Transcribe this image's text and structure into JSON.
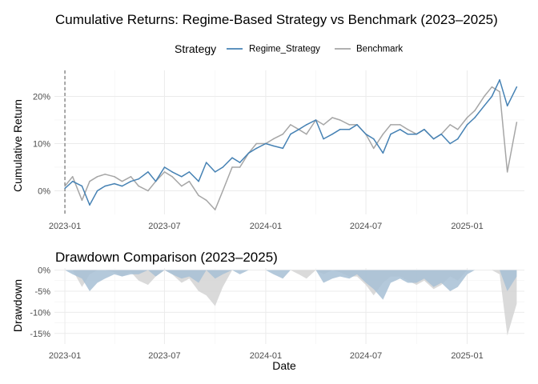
{
  "chart_data": [
    {
      "type": "line",
      "title": "Cumulative Returns: Regime-Based Strategy vs Benchmark (2023–2025)",
      "xlabel": "",
      "ylabel": "Cumulative Return",
      "x_ticks": [
        "2023-01",
        "2023-07",
        "2024-01",
        "2024-07",
        "2025-01"
      ],
      "y_ticks": [
        "0%",
        "10%",
        "20%"
      ],
      "ylim": [
        -0.05,
        0.255
      ],
      "xlim": [
        "2022-12-13",
        "2025-04-15"
      ],
      "grid": true,
      "reference_line": {
        "x": "2023-01-01",
        "style": "dashed"
      },
      "legend": {
        "title": "Strategy",
        "placement": "top",
        "entries": [
          "Regime_Strategy",
          "Benchmark"
        ]
      },
      "colors": {
        "Regime_Strategy": "#4682b4",
        "Benchmark": "#a6a6a6"
      },
      "x": [
        "2023-01-01",
        "2023-01-15",
        "2023-02-01",
        "2023-02-15",
        "2023-03-01",
        "2023-03-15",
        "2023-04-01",
        "2023-04-15",
        "2023-05-01",
        "2023-05-15",
        "2023-06-01",
        "2023-06-15",
        "2023-07-01",
        "2023-07-15",
        "2023-08-01",
        "2023-08-15",
        "2023-09-01",
        "2023-09-15",
        "2023-10-01",
        "2023-10-15",
        "2023-11-01",
        "2023-11-15",
        "2023-12-01",
        "2023-12-15",
        "2024-01-01",
        "2024-01-15",
        "2024-02-01",
        "2024-02-15",
        "2024-03-01",
        "2024-03-15",
        "2024-04-01",
        "2024-04-15",
        "2024-05-01",
        "2024-05-15",
        "2024-06-01",
        "2024-06-15",
        "2024-07-01",
        "2024-07-15",
        "2024-08-01",
        "2024-08-15",
        "2024-09-01",
        "2024-09-15",
        "2024-10-01",
        "2024-10-15",
        "2024-11-01",
        "2024-11-15",
        "2024-12-01",
        "2024-12-15",
        "2025-01-01",
        "2025-01-15",
        "2025-02-01",
        "2025-02-15",
        "2025-03-01",
        "2025-03-15",
        "2025-04-01"
      ],
      "series": [
        {
          "name": "Regime_Strategy",
          "values": [
            0.005,
            0.02,
            0.01,
            -0.03,
            0.0,
            0.01,
            0.015,
            0.01,
            0.02,
            0.025,
            0.04,
            0.02,
            0.05,
            0.04,
            0.03,
            0.04,
            0.02,
            0.06,
            0.04,
            0.05,
            0.07,
            0.06,
            0.08,
            0.09,
            0.1,
            0.095,
            0.09,
            0.12,
            0.13,
            0.14,
            0.15,
            0.11,
            0.12,
            0.13,
            0.13,
            0.14,
            0.12,
            0.11,
            0.08,
            0.12,
            0.13,
            0.12,
            0.12,
            0.13,
            0.11,
            0.12,
            0.1,
            0.11,
            0.14,
            0.155,
            0.18,
            0.2,
            0.235,
            0.18,
            0.22
          ]
        },
        {
          "name": "Benchmark",
          "values": [
            0.01,
            0.03,
            -0.02,
            0.02,
            0.03,
            0.035,
            0.03,
            0.02,
            0.03,
            0.01,
            0.0,
            0.02,
            0.04,
            0.03,
            0.01,
            0.02,
            -0.01,
            -0.02,
            -0.04,
            0.0,
            0.05,
            0.05,
            0.08,
            0.1,
            0.1,
            0.11,
            0.12,
            0.14,
            0.13,
            0.12,
            0.15,
            0.14,
            0.155,
            0.15,
            0.14,
            0.14,
            0.12,
            0.09,
            0.12,
            0.14,
            0.14,
            0.13,
            0.12,
            0.13,
            0.11,
            0.12,
            0.14,
            0.13,
            0.155,
            0.17,
            0.2,
            0.22,
            0.21,
            0.04,
            0.145
          ]
        }
      ]
    },
    {
      "type": "area",
      "title": "Drawdown Comparison (2023–2025)",
      "xlabel": "Date",
      "ylabel": "Drawdown",
      "x_ticks": [
        "2023-01",
        "2023-07",
        "2024-01",
        "2024-07",
        "2025-01"
      ],
      "y_ticks": [
        "0%",
        "-5%",
        "-10%",
        "-15%"
      ],
      "ylim": [
        -0.175,
        0.005
      ],
      "xlim": [
        "2022-12-13",
        "2025-04-15"
      ],
      "grid": true,
      "legend": {
        "placement": "none"
      },
      "colors": {
        "Regime_Strategy": "#a7bfd5",
        "Benchmark": "#d4d4d4"
      },
      "x": [
        "2023-01-01",
        "2023-01-15",
        "2023-02-01",
        "2023-02-15",
        "2023-03-01",
        "2023-03-15",
        "2023-04-01",
        "2023-04-15",
        "2023-05-01",
        "2023-05-15",
        "2023-06-01",
        "2023-06-15",
        "2023-07-01",
        "2023-07-15",
        "2023-08-01",
        "2023-08-15",
        "2023-09-01",
        "2023-09-15",
        "2023-10-01",
        "2023-10-15",
        "2023-11-01",
        "2023-11-15",
        "2023-12-01",
        "2023-12-15",
        "2024-01-01",
        "2024-01-15",
        "2024-02-01",
        "2024-02-15",
        "2024-03-01",
        "2024-03-15",
        "2024-04-01",
        "2024-04-15",
        "2024-05-01",
        "2024-05-15",
        "2024-06-01",
        "2024-06-15",
        "2024-07-01",
        "2024-07-15",
        "2024-08-01",
        "2024-08-15",
        "2024-09-01",
        "2024-09-15",
        "2024-10-01",
        "2024-10-15",
        "2024-11-01",
        "2024-11-15",
        "2024-12-01",
        "2024-12-15",
        "2025-01-01",
        "2025-01-15",
        "2025-02-01",
        "2025-02-15",
        "2025-03-01",
        "2025-03-15",
        "2025-04-01"
      ],
      "series": [
        {
          "name": "Regime_Strategy",
          "values": [
            0.0,
            -0.01,
            -0.02,
            -0.05,
            -0.03,
            -0.02,
            -0.01,
            -0.015,
            -0.01,
            -0.01,
            0.0,
            -0.015,
            0.0,
            -0.01,
            -0.02,
            -0.015,
            -0.03,
            0.0,
            -0.02,
            -0.01,
            0.0,
            -0.01,
            0.0,
            0.0,
            0.0,
            -0.01,
            -0.02,
            0.0,
            0.0,
            0.0,
            0.0,
            -0.03,
            -0.02,
            -0.015,
            -0.02,
            -0.01,
            -0.03,
            -0.045,
            -0.07,
            -0.03,
            -0.02,
            -0.03,
            -0.03,
            -0.02,
            -0.04,
            -0.03,
            -0.05,
            -0.04,
            -0.01,
            0.0,
            0.0,
            0.0,
            0.0,
            -0.05,
            -0.015
          ]
        },
        {
          "name": "Benchmark",
          "values": [
            0.0,
            0.0,
            -0.04,
            -0.01,
            0.0,
            0.0,
            -0.005,
            -0.015,
            -0.005,
            -0.025,
            -0.035,
            -0.015,
            0.0,
            -0.01,
            -0.03,
            -0.02,
            -0.05,
            -0.06,
            -0.085,
            -0.04,
            0.0,
            0.0,
            0.0,
            0.0,
            0.0,
            0.0,
            0.0,
            0.0,
            -0.01,
            -0.02,
            0.0,
            -0.01,
            0.0,
            -0.005,
            -0.015,
            -0.015,
            -0.035,
            -0.06,
            -0.03,
            -0.015,
            -0.015,
            -0.025,
            -0.035,
            -0.025,
            -0.045,
            -0.035,
            -0.015,
            -0.025,
            0.0,
            0.0,
            0.0,
            0.0,
            -0.01,
            -0.155,
            -0.08
          ]
        }
      ]
    }
  ]
}
